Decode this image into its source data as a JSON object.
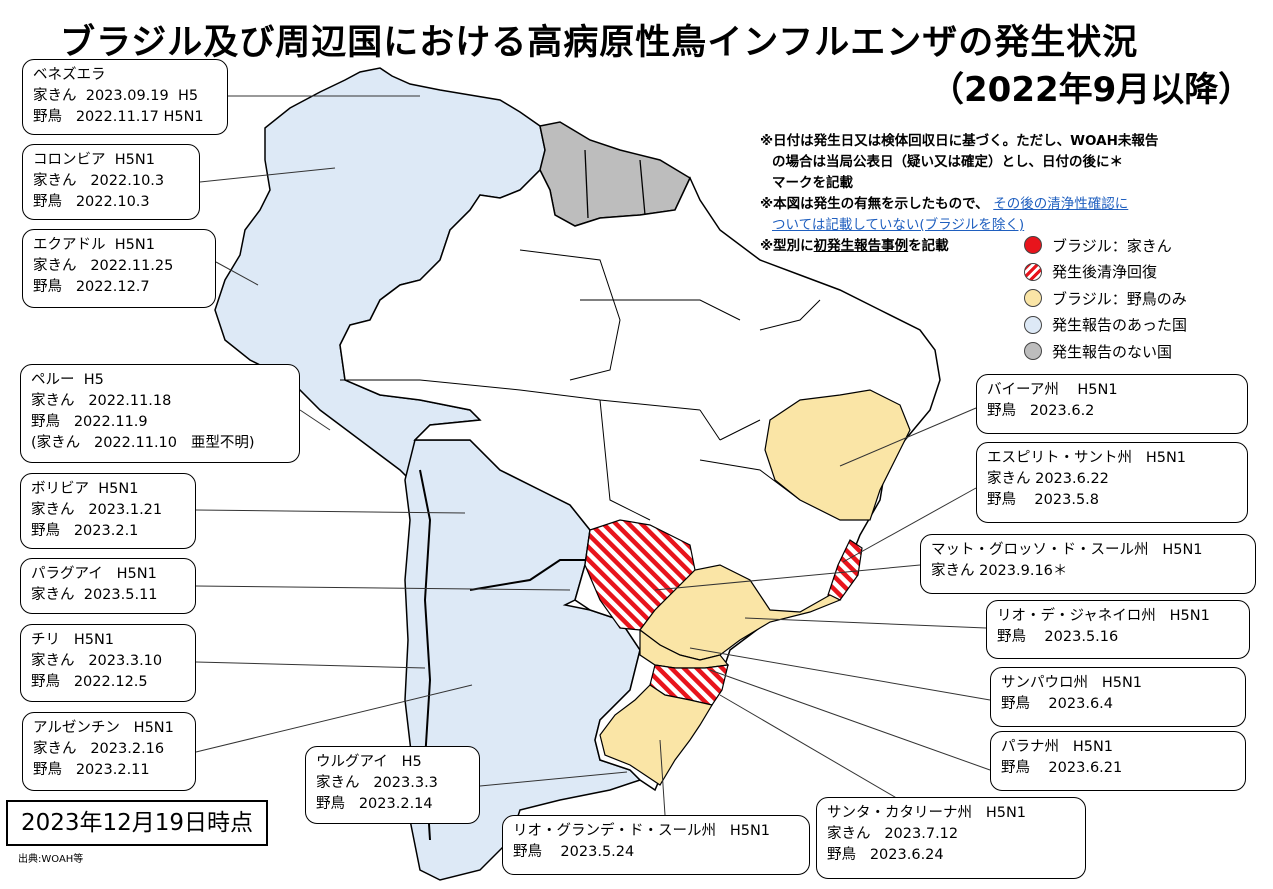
{
  "title": "ブラジル及び周辺国における高病原性鳥インフルエンザの発生状況",
  "subtitle": "（2022年9月以降）",
  "notes": {
    "line1": "※日付は発生日又は検体回収日に基づく。ただし、WOAH未報告",
    "line2": "の場合は当局公表日（疑い又は確定）とし、日付の後に＊",
    "line3": "マークを記載",
    "line4_a": "※本図は発生の有無を示したもので、",
    "line4_link": "その後の清浄性確認に",
    "line5_link": "ついては記載していない(ブラジルを除く)",
    "line6_a": "※型別に",
    "line6_u": "初発生報告事例",
    "line6_b": "を記載"
  },
  "legend": [
    {
      "label": "ブラジル：家きん",
      "color": "#e8141c",
      "pattern": "solid"
    },
    {
      "label": "発生後清浄回復",
      "color": "#e8141c",
      "pattern": "stripes"
    },
    {
      "label": "ブラジル：野鳥のみ",
      "color": "#fae5a6",
      "pattern": "solid"
    },
    {
      "label": "発生報告のあった国",
      "color": "#dde9f6",
      "pattern": "solid"
    },
    {
      "label": "発生報告のない国",
      "color": "#bdbdbd",
      "pattern": "solid"
    }
  ],
  "countries": [
    {
      "lines": [
        "ベネズエラ",
        "家きん  2023.09.19  H5",
        "野鳥   2022.11.17 H5N1"
      ]
    },
    {
      "lines": [
        "コロンビア  H5N1",
        "家きん   2022.10.3",
        "野鳥   2022.10.3"
      ]
    },
    {
      "lines": [
        "エクアドル  H5N1",
        "家きん   2022.11.25",
        "野鳥   2022.12.7"
      ]
    },
    {
      "lines": [
        "ペルー  H5",
        "家きん   2022.11.18",
        "野鳥   2022.11.9",
        "(家きん   2022.11.10   亜型不明)"
      ]
    },
    {
      "lines": [
        "ボリビア  H5N1",
        "家きん   2023.1.21",
        "野鳥   2023.2.1"
      ]
    },
    {
      "lines": [
        "パラグアイ   H5N1",
        "家きん  2023.5.11"
      ]
    },
    {
      "lines": [
        "チリ   H5N1",
        "家きん   2023.3.10",
        "野鳥   2022.12.5"
      ]
    },
    {
      "lines": [
        "アルゼンチン   H5N1",
        "家きん   2023.2.16",
        "野鳥   2023.2.11"
      ]
    },
    {
      "lines": [
        "ウルグアイ   H5",
        "家きん   2023.3.3",
        "野鳥   2023.2.14"
      ]
    }
  ],
  "states": [
    {
      "lines": [
        "バイーア州    H5N1",
        "野鳥   2023.6.2"
      ]
    },
    {
      "lines": [
        "エスピリト・サント州   H5N1",
        "家きん 2023.6.22",
        "野鳥    2023.5.8"
      ]
    },
    {
      "lines": [
        "マット・グロッソ・ド・スール州   H5N1",
        "家きん 2023.9.16＊"
      ]
    },
    {
      "lines": [
        "リオ・デ・ジャネイロ州   H5N1",
        "野鳥    2023.5.16"
      ]
    },
    {
      "lines": [
        "サンパウロ州   H5N1",
        "野鳥    2023.6.4"
      ]
    },
    {
      "lines": [
        "パラナ州   H5N1",
        "野鳥    2023.6.21"
      ]
    },
    {
      "lines": [
        "サンタ・カタリーナ州   H5N1",
        "家きん   2023.7.12",
        "野鳥   2023.6.24"
      ]
    },
    {
      "lines": [
        "リオ・グランデ・ド・スール州   H5N1",
        "野鳥    2023.5.24"
      ]
    }
  ],
  "as_of": "2023年12月19日時点",
  "source": "出典:WOAH等"
}
